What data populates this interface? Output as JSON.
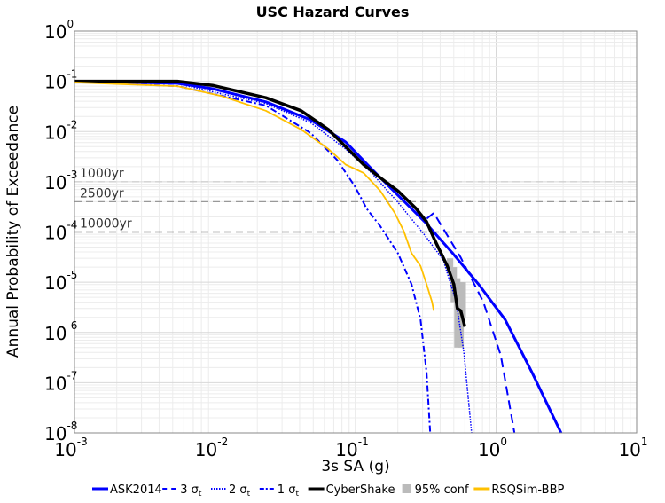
{
  "chart_data": {
    "type": "line",
    "title": "USC Hazard Curves",
    "xlabel": "3s SA (g)",
    "ylabel": "Annual Probability of Exceedance",
    "xscale": "log",
    "yscale": "log",
    "xlim": [
      0.001,
      10
    ],
    "ylim": [
      1e-08,
      1
    ],
    "grid": true,
    "x_ticks": [
      {
        "base": "10",
        "exp": "-3",
        "value": 0.001
      },
      {
        "base": "10",
        "exp": "-2",
        "value": 0.01
      },
      {
        "base": "10",
        "exp": "-1",
        "value": 0.1
      },
      {
        "base": "10",
        "exp": "0",
        "value": 1
      },
      {
        "base": "10",
        "exp": "1",
        "value": 10
      }
    ],
    "y_ticks": [
      {
        "base": "10",
        "exp": "0",
        "value": 1
      },
      {
        "base": "10",
        "exp": "-1",
        "value": 0.1
      },
      {
        "base": "10",
        "exp": "-2",
        "value": 0.01
      },
      {
        "base": "10",
        "exp": "-3",
        "value": 0.001
      },
      {
        "base": "10",
        "exp": "-4",
        "value": 0.0001
      },
      {
        "base": "10",
        "exp": "-5",
        "value": 1e-05
      },
      {
        "base": "10",
        "exp": "-6",
        "value": 1e-06
      },
      {
        "base": "10",
        "exp": "-7",
        "value": 1e-07
      },
      {
        "base": "10",
        "exp": "-8",
        "value": 1e-08
      }
    ],
    "reference_lines": [
      {
        "label": "1000yr",
        "y": 0.001,
        "color": "#cccccc"
      },
      {
        "label": "2500yr",
        "y": 0.0004,
        "color": "#999999"
      },
      {
        "label": "10000yr",
        "y": 0.0001,
        "color": "#000000"
      }
    ],
    "series": [
      {
        "name": "ASK2014",
        "color": "#0000ff",
        "style": "solid",
        "width": 3,
        "x": [
          0.001,
          0.0054,
          0.0096,
          0.023,
          0.048,
          0.085,
          0.13,
          0.2,
          0.31,
          0.49,
          0.75,
          1.16,
          1.8,
          2.9
        ],
        "y": [
          0.1,
          0.091,
          0.071,
          0.039,
          0.017,
          0.0062,
          0.0018,
          0.00054,
          0.00016,
          3.8e-05,
          9.1e-06,
          1.8e-06,
          1.6e-07,
          1e-08
        ]
      },
      {
        "name": "3 σt",
        "color": "#0000ff",
        "style": "dashed",
        "width": 2,
        "x": [
          0.001,
          0.0054,
          0.0096,
          0.023,
          0.048,
          0.085,
          0.13,
          0.2,
          0.31,
          0.36,
          0.56,
          0.81,
          1.08,
          1.35
        ],
        "y": [
          0.1,
          0.091,
          0.071,
          0.039,
          0.017,
          0.0062,
          0.0018,
          0.00054,
          0.00017,
          0.00024,
          3.1e-05,
          4.1e-06,
          3.5e-07,
          1e-08
        ]
      },
      {
        "name": "2 σt",
        "color": "#0000ff",
        "style": "dotted",
        "width": 1.5,
        "x": [
          0.001,
          0.0054,
          0.023,
          0.048,
          0.085,
          0.13,
          0.2,
          0.31,
          0.42,
          0.52,
          0.59,
          0.67
        ],
        "y": [
          0.1,
          0.089,
          0.036,
          0.015,
          0.0045,
          0.0015,
          0.00039,
          8.7e-05,
          2.8e-05,
          4.1e-06,
          4e-07,
          1e-08
        ]
      },
      {
        "name": "1 σt",
        "color": "#0000ff",
        "style": "dashdot",
        "width": 2,
        "x": [
          0.001,
          0.0054,
          0.023,
          0.048,
          0.074,
          0.099,
          0.12,
          0.15,
          0.2,
          0.25,
          0.29,
          0.32,
          0.34
        ],
        "y": [
          0.098,
          0.08,
          0.033,
          0.0093,
          0.0027,
          0.00081,
          0.00029,
          0.00013,
          3.8e-05,
          9.1e-06,
          1.8e-06,
          1.6e-07,
          1e-08
        ]
      },
      {
        "name": "CyberShake",
        "color": "#000000",
        "style": "solid",
        "width": 3.5,
        "x": [
          0.001,
          0.0054,
          0.0096,
          0.023,
          0.041,
          0.064,
          0.085,
          0.114,
          0.15,
          0.2,
          0.27,
          0.32,
          0.36,
          0.42,
          0.45,
          0.5,
          0.53,
          0.56,
          0.6
        ],
        "y": [
          0.1,
          0.1,
          0.083,
          0.047,
          0.026,
          0.011,
          0.005,
          0.0022,
          0.0012,
          0.00066,
          0.00029,
          0.00016,
          7.6e-05,
          3.1e-05,
          2.1e-05,
          9.1e-06,
          3e-06,
          2.7e-06,
          1.3e-06
        ]
      },
      {
        "name": "RSQSim-BBP",
        "color": "#ffc000",
        "style": "solid",
        "width": 1.8,
        "x": [
          0.001,
          0.0054,
          0.0111,
          0.023,
          0.041,
          0.064,
          0.085,
          0.114,
          0.15,
          0.19,
          0.22,
          0.25,
          0.29,
          0.32,
          0.35,
          0.36
        ],
        "y": [
          0.095,
          0.08,
          0.051,
          0.026,
          0.011,
          0.0045,
          0.0022,
          0.0015,
          0.00066,
          0.00024,
          0.000105,
          3.8e-05,
          2.1e-05,
          9.1e-06,
          4.1e-06,
          2.7e-06
        ]
      }
    ],
    "confidence_band": {
      "name": "95% conf",
      "color": "#bbbbbb",
      "bars": [
        {
          "x": 0.47,
          "lo": 1.5e-05,
          "hi": 3e-05
        },
        {
          "x": 0.5,
          "lo": 4e-06,
          "hi": 2e-05
        },
        {
          "x": 0.53,
          "lo": 5e-07,
          "hi": 1.2e-05
        },
        {
          "x": 0.56,
          "lo": 5e-07,
          "hi": 1e-05
        },
        {
          "x": 0.58,
          "lo": 2e-06,
          "hi": 1e-05
        }
      ]
    },
    "legend": {
      "placement": "bottom",
      "entries": [
        {
          "label": "ASK2014",
          "color": "#0000ff",
          "style": "solid"
        },
        {
          "label": "3 σ",
          "sub": "t",
          "color": "#0000ff",
          "style": "dashed"
        },
        {
          "label": "2 σ",
          "sub": "t",
          "color": "#0000ff",
          "style": "dotted"
        },
        {
          "label": "1 σ",
          "sub": "t",
          "color": "#0000ff",
          "style": "dashdot"
        },
        {
          "label": "CyberShake",
          "color": "#000000",
          "style": "solid"
        },
        {
          "label": "95% conf",
          "color": "#bbbbbb",
          "style": "box"
        },
        {
          "label": "RSQSim-BBP",
          "color": "#ffc000",
          "style": "solid"
        }
      ]
    }
  }
}
